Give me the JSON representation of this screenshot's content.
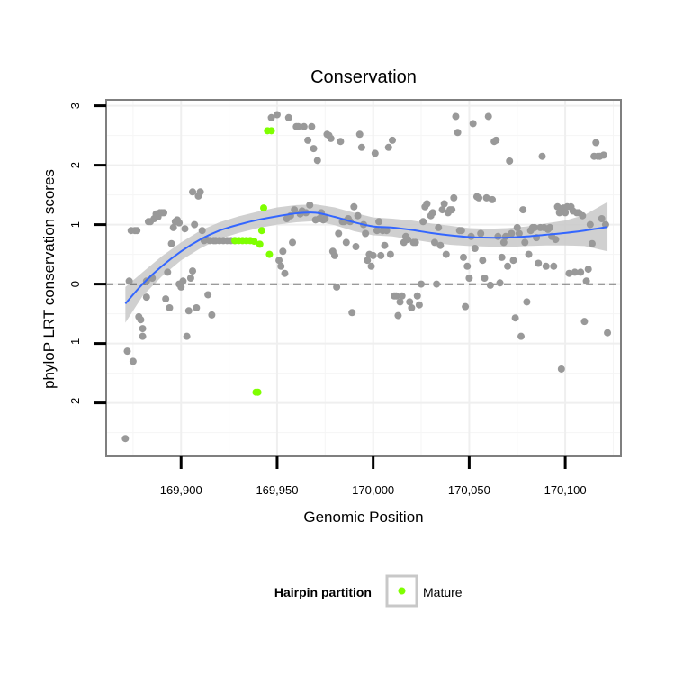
{
  "chart_data": {
    "type": "scatter",
    "title": "Conservation",
    "xlabel": "Genomic Position",
    "ylabel": "phyloP LRT conservation scores",
    "xlim": [
      169861,
      170129
    ],
    "ylim": [
      -2.9,
      3.1
    ],
    "x_ticks": [
      169900,
      169950,
      170000,
      170050,
      170100
    ],
    "x_tick_labels": [
      "169,900",
      "169,950",
      "170,000",
      "170,050",
      "170,100"
    ],
    "y_ticks": [
      -2,
      -1,
      0,
      1,
      2,
      3
    ],
    "y_tick_labels": [
      "-2",
      "-1",
      "0",
      "1",
      "2",
      "3"
    ],
    "grid": true,
    "reference_line": {
      "y": 0,
      "style": "dashed"
    },
    "legend": {
      "title": "Hairpin partition",
      "position": "bottom",
      "entries": [
        "Mature"
      ]
    },
    "colors": {
      "other": "#999999",
      "mature": "#7FFF00",
      "smooth": "#3366FF",
      "band": "#C8C8C8",
      "grid": "#EFEFEF",
      "frame": "#7F7F7F"
    },
    "series": [
      {
        "name": "",
        "color": "#999999",
        "points": [
          [
            169871,
            -2.6
          ],
          [
            169872,
            -1.13
          ],
          [
            169873,
            0.05
          ],
          [
            169874,
            0.9
          ],
          [
            169875,
            -1.3
          ],
          [
            169876,
            0.9
          ],
          [
            169877,
            0.9
          ],
          [
            169878,
            -0.55
          ],
          [
            169879,
            -0.6
          ],
          [
            169880,
            -0.75
          ],
          [
            169880,
            -0.88
          ],
          [
            169882,
            0.05
          ],
          [
            169882,
            -0.22
          ],
          [
            169883,
            1.05
          ],
          [
            169884,
            1.05
          ],
          [
            169885,
            0.1
          ],
          [
            169886,
            1.1
          ],
          [
            169887,
            1.18
          ],
          [
            169888,
            1.13
          ],
          [
            169889,
            1.2
          ],
          [
            169890,
            1.2
          ],
          [
            169891,
            1.2
          ],
          [
            169892,
            -0.25
          ],
          [
            169893,
            0.2
          ],
          [
            169894,
            -0.4
          ],
          [
            169895,
            0.68
          ],
          [
            169896,
            0.95
          ],
          [
            169897,
            1.05
          ],
          [
            169898,
            1.08
          ],
          [
            169899,
            1.03
          ],
          [
            169899,
            0.0
          ],
          [
            169900,
            -0.05
          ],
          [
            169901,
            0.05
          ],
          [
            169902,
            0.93
          ],
          [
            169903,
            -0.88
          ],
          [
            169904,
            -0.45
          ],
          [
            169905,
            0.1
          ],
          [
            169906,
            1.55
          ],
          [
            169906,
            0.22
          ],
          [
            169907,
            1.0
          ],
          [
            169908,
            -0.4
          ],
          [
            169909,
            1.48
          ],
          [
            169910,
            1.55
          ],
          [
            169911,
            0.9
          ],
          [
            169912,
            0.73
          ],
          [
            169913,
            0.75
          ],
          [
            169914,
            -0.18
          ],
          [
            169915,
            0.73
          ],
          [
            169916,
            -0.52
          ],
          [
            169917,
            0.73
          ],
          [
            169918,
            0.73
          ],
          [
            169920,
            0.73
          ],
          [
            169922,
            0.73
          ],
          [
            169924,
            0.73
          ],
          [
            169926,
            0.73
          ],
          [
            169928,
            0.73
          ],
          [
            169947,
            2.8
          ],
          [
            169950,
            2.85
          ],
          [
            169951,
            0.4
          ],
          [
            169952,
            0.3
          ],
          [
            169953,
            0.55
          ],
          [
            169954,
            0.18
          ],
          [
            169955,
            1.1
          ],
          [
            169956,
            2.8
          ],
          [
            169957,
            1.15
          ],
          [
            169958,
            0.7
          ],
          [
            169959,
            1.25
          ],
          [
            169960,
            2.65
          ],
          [
            169961,
            2.65
          ],
          [
            169962,
            1.18
          ],
          [
            169963,
            1.23
          ],
          [
            169964,
            2.65
          ],
          [
            169965,
            1.2
          ],
          [
            169966,
            2.42
          ],
          [
            169967,
            1.33
          ],
          [
            169968,
            2.65
          ],
          [
            169969,
            2.28
          ],
          [
            169970,
            1.08
          ],
          [
            169971,
            2.08
          ],
          [
            169972,
            1.1
          ],
          [
            169973,
            1.2
          ],
          [
            169974,
            1.08
          ],
          [
            169975,
            1.1
          ],
          [
            169976,
            2.52
          ],
          [
            169977,
            2.5
          ],
          [
            169978,
            2.45
          ],
          [
            169979,
            0.55
          ],
          [
            169980,
            0.48
          ],
          [
            169981,
            -0.05
          ],
          [
            169982,
            0.85
          ],
          [
            169983,
            2.4
          ],
          [
            169984,
            1.05
          ],
          [
            169985,
            1.05
          ],
          [
            169986,
            0.7
          ],
          [
            169987,
            1.1
          ],
          [
            169988,
            1.05
          ],
          [
            169989,
            -0.48
          ],
          [
            169990,
            1.3
          ],
          [
            169991,
            0.63
          ],
          [
            169992,
            1.15
          ],
          [
            169993,
            2.52
          ],
          [
            169994,
            2.3
          ],
          [
            169995,
            1.0
          ],
          [
            169996,
            0.85
          ],
          [
            169997,
            0.4
          ],
          [
            169998,
            0.5
          ],
          [
            169999,
            0.3
          ],
          [
            170000,
            0.48
          ],
          [
            170001,
            2.2
          ],
          [
            170002,
            0.9
          ],
          [
            170003,
            1.05
          ],
          [
            170004,
            0.48
          ],
          [
            170005,
            0.9
          ],
          [
            170006,
            0.65
          ],
          [
            170007,
            0.9
          ],
          [
            170008,
            2.3
          ],
          [
            170009,
            0.5
          ],
          [
            170010,
            2.42
          ],
          [
            170011,
            -0.2
          ],
          [
            170012,
            -0.2
          ],
          [
            170013,
            -0.53
          ],
          [
            170014,
            -0.3
          ],
          [
            170015,
            -0.2
          ],
          [
            170016,
            0.7
          ],
          [
            170017,
            0.8
          ],
          [
            170018,
            0.75
          ],
          [
            170019,
            -0.3
          ],
          [
            170020,
            -0.4
          ],
          [
            170021,
            0.7
          ],
          [
            170022,
            0.7
          ],
          [
            170023,
            -0.2
          ],
          [
            170024,
            -0.35
          ],
          [
            170025,
            0.0
          ],
          [
            170026,
            1.05
          ],
          [
            170027,
            1.3
          ],
          [
            170028,
            1.35
          ],
          [
            170030,
            1.15
          ],
          [
            170031,
            1.2
          ],
          [
            170032,
            0.7
          ],
          [
            170033,
            0.0
          ],
          [
            170034,
            0.95
          ],
          [
            170035,
            0.65
          ],
          [
            170036,
            1.25
          ],
          [
            170037,
            1.35
          ],
          [
            170038,
            0.5
          ],
          [
            170039,
            1.2
          ],
          [
            170040,
            1.25
          ],
          [
            170041,
            1.25
          ],
          [
            170042,
            1.45
          ],
          [
            170043,
            2.82
          ],
          [
            170044,
            2.55
          ],
          [
            170045,
            0.9
          ],
          [
            170046,
            0.9
          ],
          [
            170047,
            0.45
          ],
          [
            170048,
            -0.38
          ],
          [
            170049,
            0.3
          ],
          [
            170050,
            0.1
          ],
          [
            170051,
            0.8
          ],
          [
            170052,
            2.7
          ],
          [
            170053,
            0.6
          ],
          [
            170054,
            1.47
          ],
          [
            170055,
            1.45
          ],
          [
            170056,
            0.85
          ],
          [
            170057,
            0.4
          ],
          [
            170058,
            0.1
          ],
          [
            170059,
            1.45
          ],
          [
            170060,
            2.82
          ],
          [
            170061,
            -0.02
          ],
          [
            170062,
            1.42
          ],
          [
            170063,
            2.4
          ],
          [
            170064,
            2.42
          ],
          [
            170065,
            0.8
          ],
          [
            170066,
            0.02
          ],
          [
            170067,
            0.45
          ],
          [
            170068,
            0.7
          ],
          [
            170069,
            0.8
          ],
          [
            170070,
            0.3
          ],
          [
            170071,
            2.07
          ],
          [
            170072,
            0.85
          ],
          [
            170073,
            0.4
          ],
          [
            170074,
            -0.57
          ],
          [
            170075,
            0.95
          ],
          [
            170076,
            0.85
          ],
          [
            170077,
            -0.88
          ],
          [
            170078,
            1.25
          ],
          [
            170079,
            0.7
          ],
          [
            170080,
            -0.3
          ],
          [
            170081,
            0.5
          ],
          [
            170082,
            0.9
          ],
          [
            170083,
            0.95
          ],
          [
            170084,
            0.95
          ],
          [
            170085,
            0.78
          ],
          [
            170086,
            0.35
          ],
          [
            170087,
            0.95
          ],
          [
            170088,
            2.15
          ],
          [
            170089,
            0.95
          ],
          [
            170090,
            0.3
          ],
          [
            170091,
            0.92
          ],
          [
            170092,
            0.95
          ],
          [
            170093,
            0.8
          ],
          [
            170094,
            0.3
          ],
          [
            170095,
            0.75
          ],
          [
            170096,
            1.3
          ],
          [
            170097,
            1.2
          ],
          [
            170098,
            -1.43
          ],
          [
            170099,
            1.28
          ],
          [
            170100,
            1.2
          ],
          [
            170101,
            1.3
          ],
          [
            170102,
            0.18
          ],
          [
            170103,
            1.3
          ],
          [
            170104,
            1.23
          ],
          [
            170105,
            0.2
          ],
          [
            170106,
            1.2
          ],
          [
            170107,
            1.2
          ],
          [
            170108,
            0.2
          ],
          [
            170109,
            1.15
          ],
          [
            170110,
            -0.63
          ],
          [
            170111,
            0.05
          ],
          [
            170112,
            0.25
          ],
          [
            170113,
            1.0
          ],
          [
            170114,
            0.68
          ],
          [
            170115,
            2.15
          ],
          [
            170116,
            2.38
          ],
          [
            170117,
            2.15
          ],
          [
            170118,
            2.15
          ],
          [
            170119,
            1.1
          ],
          [
            170120,
            2.17
          ],
          [
            170121,
            1.0
          ],
          [
            170122,
            -0.82
          ]
        ]
      },
      {
        "name": "Mature",
        "color": "#7FFF00",
        "points": [
          [
            169928,
            0.73
          ],
          [
            169930,
            0.73
          ],
          [
            169932,
            0.73
          ],
          [
            169934,
            0.73
          ],
          [
            169936,
            0.73
          ],
          [
            169938,
            0.72
          ],
          [
            169939,
            -1.82
          ],
          [
            169940,
            -1.82
          ],
          [
            169941,
            0.67
          ],
          [
            169942,
            0.9
          ],
          [
            169943,
            1.28
          ],
          [
            169945,
            2.58
          ],
          [
            169946,
            0.5
          ],
          [
            169947,
            2.58
          ]
        ]
      }
    ],
    "smooth": {
      "color": "#3366FF",
      "x": [
        169871,
        169880,
        169890,
        169900,
        169910,
        169920,
        169930,
        169940,
        169950,
        169960,
        169970,
        169980,
        169990,
        170000,
        170010,
        170020,
        170030,
        170040,
        170050,
        170060,
        170070,
        170080,
        170090,
        170100,
        170110,
        170122
      ],
      "y": [
        -0.33,
        0.0,
        0.3,
        0.55,
        0.75,
        0.9,
        1.0,
        1.08,
        1.14,
        1.19,
        1.2,
        1.13,
        1.04,
        0.97,
        0.95,
        0.91,
        0.86,
        0.82,
        0.79,
        0.78,
        0.78,
        0.8,
        0.83,
        0.86,
        0.9,
        0.96
      ],
      "band_upper": [
        -0.05,
        0.2,
        0.47,
        0.7,
        0.9,
        1.04,
        1.14,
        1.22,
        1.29,
        1.33,
        1.34,
        1.29,
        1.2,
        1.12,
        1.1,
        1.07,
        1.02,
        0.98,
        0.94,
        0.93,
        0.94,
        0.97,
        1.02,
        1.07,
        1.16,
        1.38
      ],
      "band_lower": [
        -0.65,
        -0.2,
        0.13,
        0.4,
        0.6,
        0.76,
        0.86,
        0.94,
        1.0,
        1.04,
        1.06,
        0.99,
        0.89,
        0.82,
        0.8,
        0.75,
        0.7,
        0.66,
        0.64,
        0.63,
        0.62,
        0.64,
        0.65,
        0.65,
        0.64,
        0.55
      ]
    }
  }
}
